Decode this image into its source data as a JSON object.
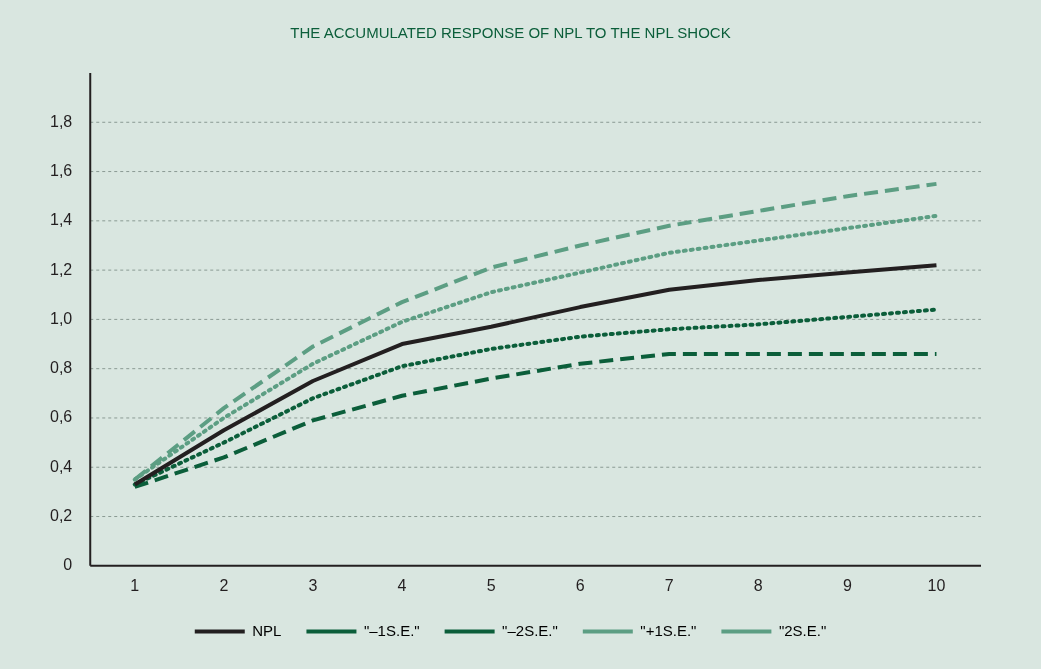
{
  "chart_data": {
    "type": "line",
    "title": "THE ACCUMULATED RESPONSE OF NPL TO THE NPL SHOCK",
    "x": [
      1,
      2,
      3,
      4,
      5,
      6,
      7,
      8,
      9,
      10
    ],
    "xlim": [
      0.5,
      10.5
    ],
    "xticks": [
      1,
      2,
      3,
      4,
      5,
      6,
      7,
      8,
      9,
      10
    ],
    "ylim": [
      0,
      2
    ],
    "yticks": [
      0,
      {
        "value": 0.2,
        "label": "0,2"
      },
      {
        "value": 0.4,
        "label": "0,4"
      },
      {
        "value": 0.6,
        "label": "0,6"
      },
      {
        "value": 0.8,
        "label": "0,8"
      },
      {
        "value": 1,
        "label": "1,0"
      },
      {
        "value": 1.2,
        "label": "1,2"
      },
      {
        "value": 1.4,
        "label": "1,4"
      },
      {
        "value": 1.6,
        "label": "1,6"
      },
      {
        "value": 1.8,
        "label": "1,8"
      }
    ],
    "grid": "y",
    "legend": "bottom",
    "marker": "none",
    "series": [
      {
        "name": "NPL",
        "color": "#231f20",
        "line_style": "solid",
        "values": [
          0.33,
          0.55,
          0.75,
          0.9,
          0.97,
          1.05,
          1.12,
          1.16,
          1.19,
          1.22
        ]
      },
      {
        "name": "\"–1S.E.\"",
        "color": "#0b5e3a",
        "line_style": "dotted",
        "values": [
          0.33,
          0.5,
          0.68,
          0.81,
          0.88,
          0.93,
          0.96,
          0.98,
          1.01,
          1.04
        ]
      },
      {
        "name": "\"–2S.E.\"",
        "color": "#0b5e3a",
        "line_style": "dashed",
        "values": [
          0.32,
          0.44,
          0.59,
          0.69,
          0.76,
          0.82,
          0.86,
          0.86,
          0.86,
          0.86
        ]
      },
      {
        "name": "\"+1S.E.\"",
        "color": "#5c9e83",
        "line_style": "dotted",
        "values": [
          0.35,
          0.6,
          0.82,
          0.99,
          1.11,
          1.19,
          1.27,
          1.32,
          1.37,
          1.42
        ]
      },
      {
        "name": "\"2S.E.\"",
        "color": "#5c9e83",
        "line_style": "dashed",
        "values": [
          0.35,
          0.64,
          0.89,
          1.07,
          1.21,
          1.3,
          1.38,
          1.44,
          1.5,
          1.55
        ]
      }
    ]
  }
}
